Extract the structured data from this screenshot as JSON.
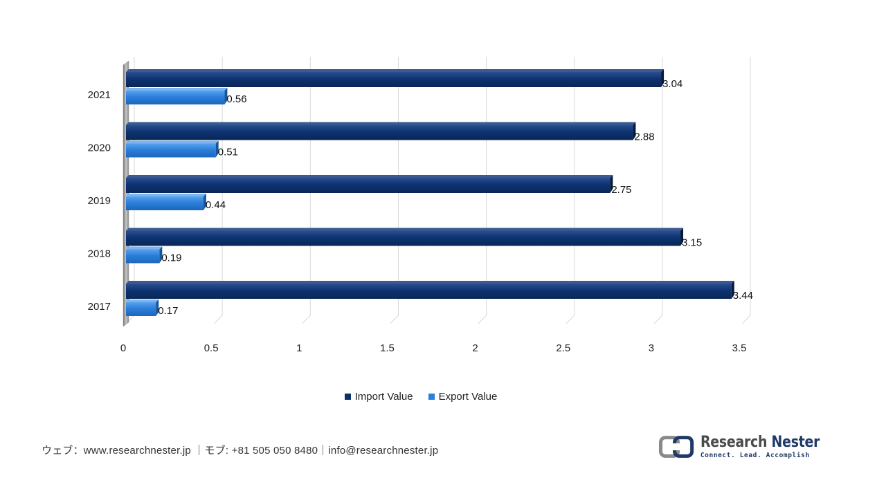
{
  "chart_data": {
    "type": "bar",
    "orientation": "horizontal",
    "categories": [
      "2021",
      "2020",
      "2019",
      "2018",
      "2017"
    ],
    "series": [
      {
        "name": "Import Value",
        "values": [
          3.04,
          2.88,
          2.75,
          3.15,
          3.44
        ],
        "color": "#0c2f66"
      },
      {
        "name": "Export Value",
        "values": [
          0.56,
          0.51,
          0.44,
          0.19,
          0.17
        ],
        "color": "#2b7fd9"
      }
    ],
    "data_labels": {
      "Import Value": [
        "3.04",
        "2.88",
        "2.75",
        "3.15",
        "3.44"
      ],
      "Export Value": [
        "0.56",
        "0.51",
        "0.44",
        "0.19",
        "0.17"
      ]
    },
    "xlim": [
      0,
      3.5
    ],
    "xticks": [
      "0",
      "0.5",
      "1",
      "1.5",
      "2",
      "2.5",
      "3",
      "3.5"
    ],
    "title": "",
    "xlabel": "",
    "ylabel": "",
    "grid": true,
    "legend_position": "bottom"
  },
  "legend": {
    "import_label": "Import Value",
    "export_label": "Export Value",
    "import_color": "#0c2f66",
    "export_color": "#2b7fd9"
  },
  "footer": {
    "contact": "ウェブ：www.researchnester.jp ｜モブ: +81 505 050 8480｜info@researchnester.jp"
  },
  "logo": {
    "name_part1": "Research",
    "name_part2": "Nester",
    "tagline": "Connect. Lead. Accomplish"
  }
}
